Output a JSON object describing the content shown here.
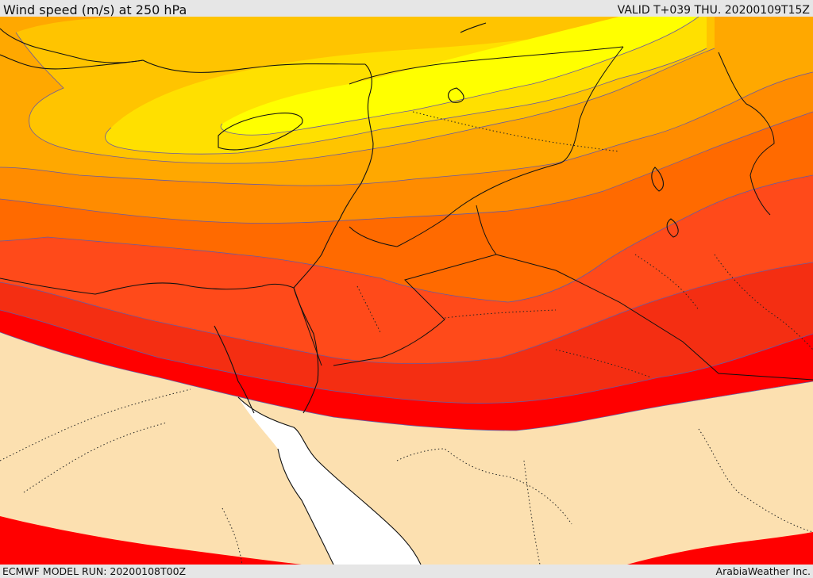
{
  "header": {
    "title": "Wind speed (m/s) at 250 hPa",
    "valid": "VALID T+039 THU. 20200109T15Z"
  },
  "footer": {
    "model_run": "ECMWF MODEL RUN: 20200108T00Z",
    "credit": "ArabiaWeather Inc."
  },
  "map": {
    "field": "wind speed at 250 hPa",
    "colors": {
      "below_threshold": "#fce0b0",
      "band_1": "#ff0000",
      "band_2": "#f42e12",
      "band_3": "#ff4a1a",
      "band_4": "#ff6a00",
      "band_5": "#ff8c00",
      "band_6": "#ffa800",
      "band_7": "#ffc400",
      "band_8": "#ffe000",
      "band_9": "#ffff00",
      "sea_gap": "#ffffff",
      "contour": "#6a5aa0",
      "border": "#111111"
    }
  }
}
